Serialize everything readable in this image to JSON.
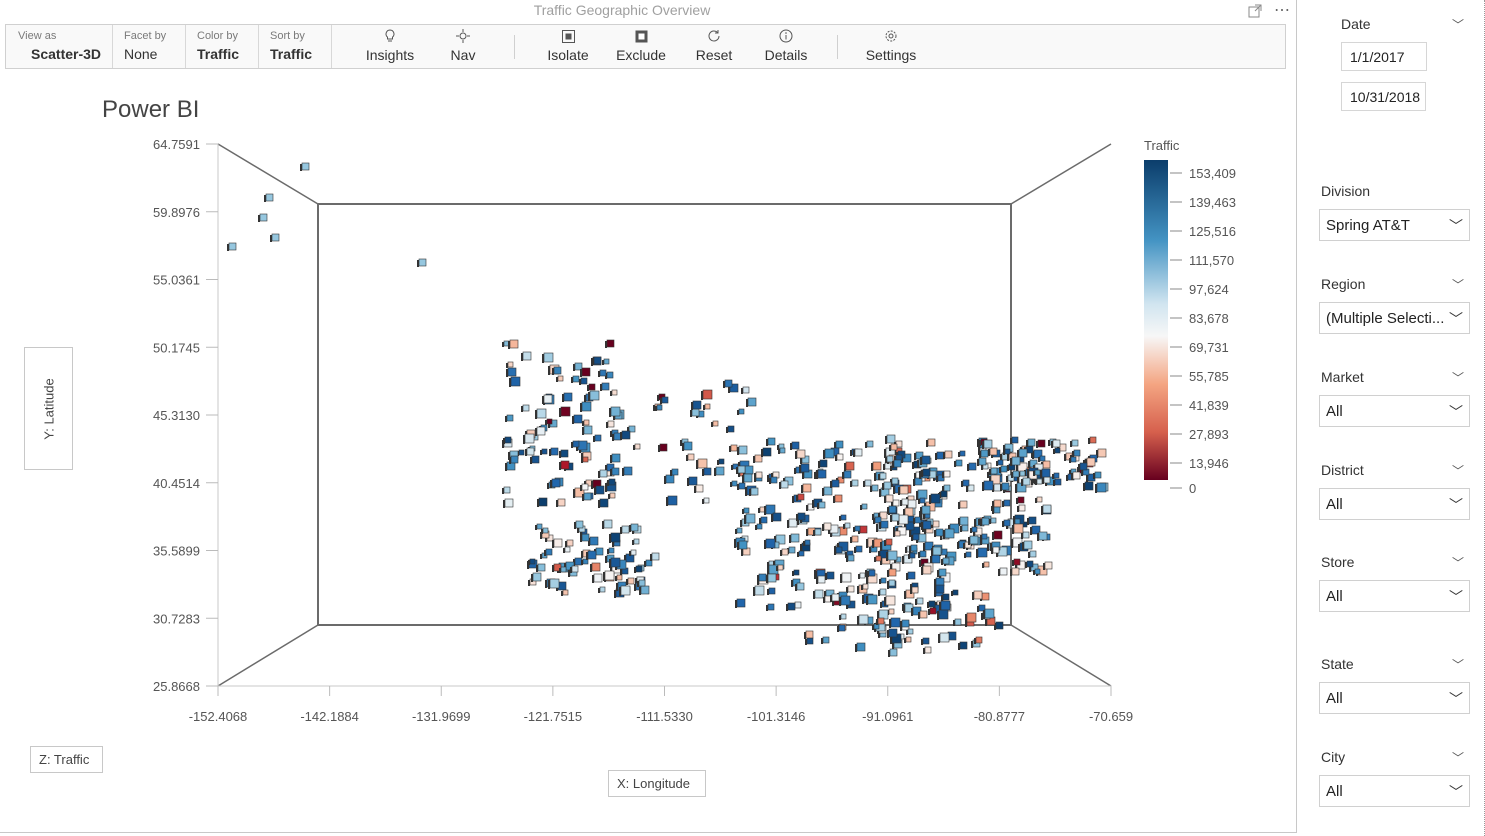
{
  "visual": {
    "title": "Traffic Geographic Overview"
  },
  "toolbar": {
    "view_as": {
      "caption": "View as",
      "value": "Scatter-3D"
    },
    "facet_by": {
      "caption": "Facet by",
      "value": "None"
    },
    "color_by": {
      "caption": "Color by",
      "value": "Traffic"
    },
    "sort_by": {
      "caption": "Sort by",
      "value": "Traffic"
    },
    "buttons": {
      "insights": "Insights",
      "nav": "Nav",
      "isolate": "Isolate",
      "exclude": "Exclude",
      "reset": "Reset",
      "details": "Details",
      "settings": "Settings"
    }
  },
  "chart_title": "Power BI",
  "axis_buttons": {
    "y": "Y: Latitude",
    "z": "Z: Traffic",
    "x": "X: Longitude"
  },
  "legend": {
    "title": "Traffic",
    "ticks": [
      "153,409",
      "139,463",
      "125,516",
      "111,570",
      "97,624",
      "83,678",
      "69,731",
      "55,785",
      "41,839",
      "27,893",
      "13,946",
      "0"
    ],
    "colors": {
      "high": "#0b3d6b",
      "mid": "#f7f7f7",
      "low": "#67001f"
    }
  },
  "chart_data": {
    "type": "scatter",
    "x_ticks": [
      "-152.4068",
      "-142.1884",
      "-131.9699",
      "-121.7515",
      "-111.5330",
      "-101.3146",
      "-91.0961",
      "-80.8777",
      "-70.659"
    ],
    "y_ticks": [
      "64.7591",
      "59.8976",
      "55.0361",
      "50.1745",
      "45.3130",
      "40.4514",
      "35.5899",
      "30.7283",
      "25.8668"
    ],
    "xlim": [
      -152.4068,
      -70.659
    ],
    "ylim": [
      25.8668,
      64.7591
    ],
    "zlim": [
      0,
      153409
    ],
    "xlabel": "X: Longitude",
    "ylabel": "Y: Latitude",
    "zlabel": "Z: Traffic"
  },
  "slicers": {
    "date": {
      "label": "Date",
      "start": "1/1/2017",
      "end": "10/31/2018"
    },
    "division": {
      "label": "Division",
      "value": "Spring AT&T"
    },
    "region": {
      "label": "Region",
      "value": "(Multiple Selecti..."
    },
    "market": {
      "label": "Market",
      "value": "All"
    },
    "district": {
      "label": "District",
      "value": "All"
    },
    "store": {
      "label": "Store",
      "value": "All"
    },
    "state": {
      "label": "State",
      "value": "All"
    },
    "city": {
      "label": "City",
      "value": "All"
    }
  }
}
